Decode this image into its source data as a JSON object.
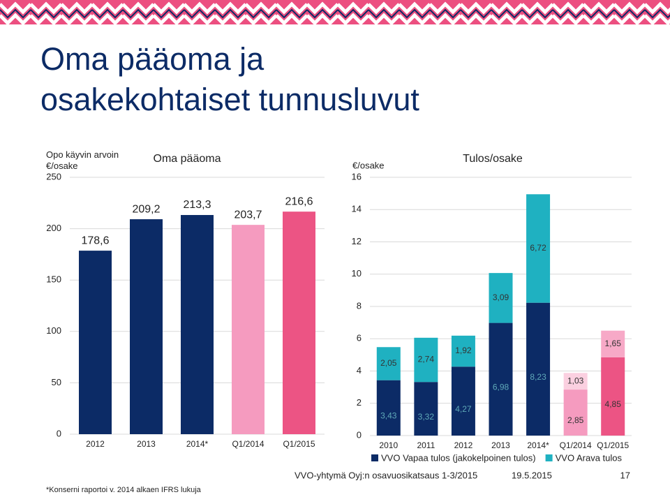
{
  "header": {
    "title_lines": [
      "Oma pääoma ja",
      "osakekohtaiset tunnusluvut"
    ]
  },
  "chart_data": [
    {
      "type": "bar",
      "title": "Oma pääoma",
      "y_label": "Opo käyvin arvoin €/osake",
      "categories": [
        "2012",
        "2013",
        "2014*",
        "Q1/2014",
        "Q1/2015"
      ],
      "values": [
        178.6,
        209.2,
        213.3,
        203.7,
        216.6
      ],
      "value_labels": [
        "178,6",
        "209,2",
        "213,3",
        "203,7",
        "216,6"
      ],
      "colors": [
        "#0c2b66",
        "#0c2b66",
        "#0c2b66",
        "#f59bbf",
        "#ec5484"
      ],
      "ylim": [
        0,
        250
      ],
      "yticks": [
        0,
        50,
        100,
        150,
        200,
        250
      ],
      "grid": true
    },
    {
      "type": "stacked_bar",
      "title": "Tulos/osake",
      "y_label": "€/osake",
      "categories": [
        "2010",
        "2011",
        "2012",
        "2013",
        "2014*",
        "Q1/2014",
        "Q1/2015"
      ],
      "series": [
        {
          "name": "VVO Vapaa tulos (jakokelpoinen tulos)",
          "color": "#0c2b66",
          "colors": [
            "#0c2b66",
            "#0c2b66",
            "#0c2b66",
            "#0c2b66",
            "#0c2b66",
            "#f59bbf",
            "#ec5484"
          ],
          "values": [
            3.43,
            3.32,
            4.27,
            6.98,
            8.23,
            2.85,
            4.85
          ],
          "value_labels": [
            "3,43",
            "3,32",
            "4,27",
            "6,98",
            "8,23",
            "2,85",
            "4,85"
          ]
        },
        {
          "name": "VVO Arava tulos",
          "color": "#1fb1c1",
          "colors": [
            "#1fb1c1",
            "#1fb1c1",
            "#1fb1c1",
            "#1fb1c1",
            "#1fb1c1",
            "#fbd0e0",
            "#f7a9c7"
          ],
          "values": [
            2.05,
            2.74,
            1.92,
            3.09,
            6.72,
            1.03,
            1.65
          ],
          "value_labels": [
            "2,05",
            "2,74",
            "1,92",
            "3,09",
            "6,72",
            "1,03",
            "1,65"
          ]
        }
      ],
      "ylim": [
        0,
        16
      ],
      "yticks": [
        0,
        2,
        4,
        6,
        8,
        10,
        12,
        14,
        16
      ],
      "grid": true,
      "legend": "bottom"
    }
  ],
  "footer": {
    "note": "*Konserni raportoi v. 2014 alkaen IFRS lukuja",
    "source": "VVO-yhtymä Oyj:n osavuosikatsaus 1-3/2015",
    "date": "19.5.2015",
    "page": "17"
  }
}
